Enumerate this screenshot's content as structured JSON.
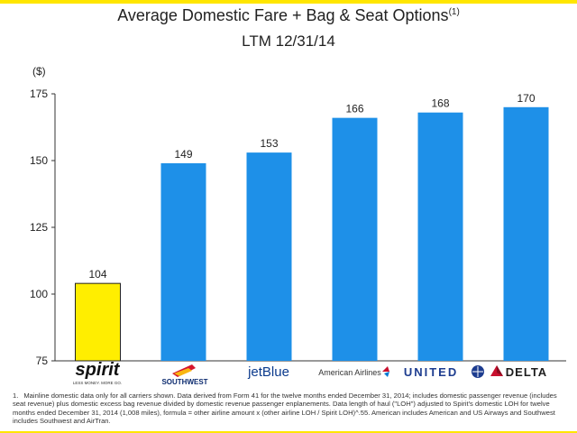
{
  "title": "Average Domestic Fare + Bag & Seat Options",
  "title_footnote_marker": "(1)",
  "subtitle": "LTM 12/31/14",
  "chart_data": {
    "type": "bar",
    "categories": [
      "Spirit",
      "Southwest",
      "JetBlue",
      "American Airlines",
      "United",
      "Delta"
    ],
    "values": [
      104,
      149,
      153,
      166,
      168,
      170
    ],
    "value_labels": [
      "104",
      "149",
      "153",
      "166",
      "168",
      "170"
    ],
    "ylabel": "($)",
    "ylim": [
      75,
      175
    ],
    "yticks": [
      75,
      100,
      125,
      150,
      175
    ],
    "grid": false,
    "bar_colors": [
      "#ffee00",
      "#1e90e8",
      "#1e90e8",
      "#1e90e8",
      "#1e90e8",
      "#1e90e8"
    ]
  },
  "logos": {
    "spirit": {
      "name": "spirit",
      "tagline": "LESS MONEY. MORE GO."
    },
    "southwest": {
      "name": "SOUTHWEST"
    },
    "jetblue": {
      "name": "jetBlue"
    },
    "american": {
      "name": "American Airlines"
    },
    "united": {
      "name": "UNITED"
    },
    "delta": {
      "name": "DELTA"
    }
  },
  "footnote": {
    "number": "1.",
    "text": "Mainline domestic data only for all carriers shown. Data derived from Form 41 for the twelve months ended December 31, 2014; includes domestic passenger revenue (includes seat revenue) plus domestic excess bag revenue divided by domestic revenue passenger enplanements. Data length of haul (\"LOH\") adjusted to Spirit's domestic LOH for twelve months ended December 31, 2014 (1,008 miles), formula = other airline amount x (other airline LOH / Spirit LOH)^.55. American includes American and US Airways and Southwest includes Southwest and AirTran."
  },
  "colors": {
    "accent_yellow": "#ffe600",
    "spirit_yellow": "#ffee00",
    "bar_blue": "#1e90e8",
    "southwest_red": "#d5152e",
    "jetblue_navy": "#0b3a8c",
    "united_blue": "#1d3c8f",
    "delta_red": "#c8102e"
  }
}
